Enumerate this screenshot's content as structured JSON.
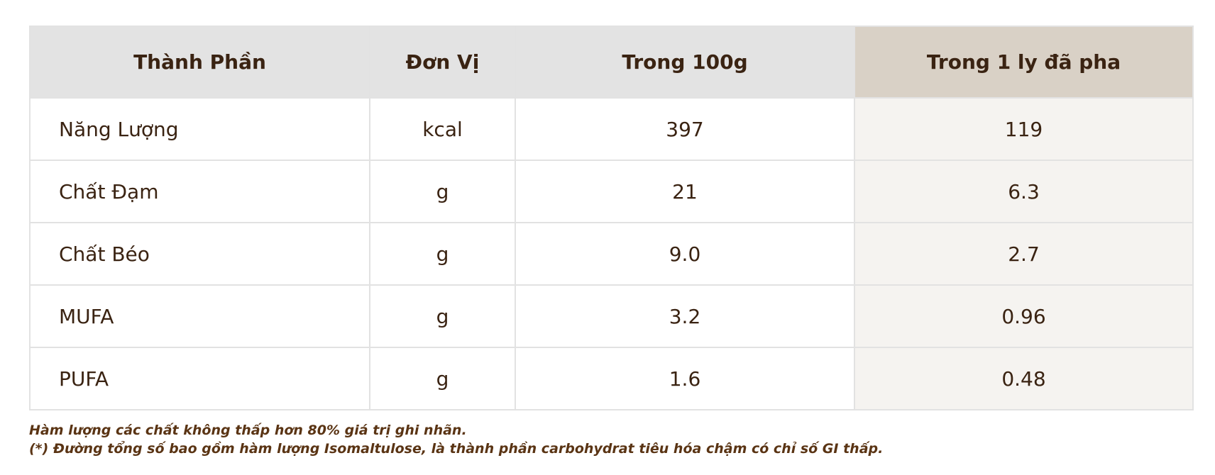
{
  "table": {
    "header": [
      "Thành Phần",
      "Đơn Vị",
      "Trong 100g",
      "Trong 1 ly đã pha"
    ],
    "rows": [
      [
        "Năng Lượng",
        "kcal",
        "397",
        "119"
      ],
      [
        "Chất Đạm",
        "g",
        "21",
        "6.3"
      ],
      [
        "Chất Béo",
        "g",
        "9.0",
        "2.7"
      ],
      [
        "MUFA",
        "g",
        "3.2",
        "0.96"
      ],
      [
        "PUFA",
        "g",
        "1.6",
        "0.48"
      ]
    ]
  },
  "notes": [
    "Hàm lượng các chất không thấp hơn 80% giá trị ghi nhãn.",
    "(*) Đường tổng số bao gồm hàm lượng Isomaltulose, là thành phần carbohydrat tiêu hóa chậm có chỉ số GI thấp."
  ]
}
